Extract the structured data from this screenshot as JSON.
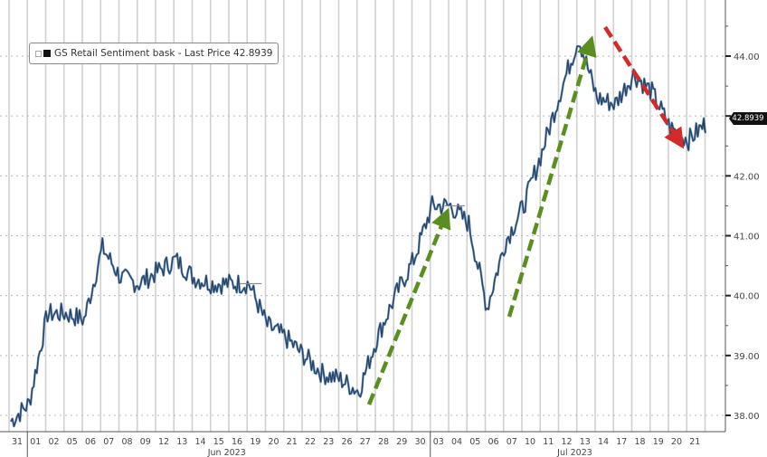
{
  "legend": {
    "label": "GS Retail Sentiment bask - Last Price 42.8939"
  },
  "price_tag": "42.8939",
  "colors": {
    "line": "#2b3e57",
    "line_highlight": "#5b8fc4",
    "up_arrow": "#5a8f1f",
    "down_arrow": "#d42a2a",
    "grid": "#d0d0d0",
    "axis": "#555555"
  },
  "chart_data": {
    "type": "line",
    "title": "GS Retail Sentiment bask - Last Price 42.8939",
    "xlabel": "",
    "ylabel": "",
    "series": [
      {
        "name": "GS Retail Sentiment bask - Last Price",
        "last_value": 42.8939,
        "x": [
          "May 31",
          "Jun 01",
          "Jun 02",
          "Jun 05",
          "Jun 06",
          "Jun 07",
          "Jun 08",
          "Jun 09",
          "Jun 12",
          "Jun 13",
          "Jun 14",
          "Jun 15",
          "Jun 16",
          "Jun 19",
          "Jun 20",
          "Jun 21",
          "Jun 22",
          "Jun 23",
          "Jun 26",
          "Jun 27",
          "Jun 28",
          "Jun 29",
          "Jun 30",
          "Jul 03",
          "Jul 04",
          "Jul 05",
          "Jul 06",
          "Jul 07",
          "Jul 10",
          "Jul 11",
          "Jul 12",
          "Jul 13",
          "Jul 14",
          "Jul 17",
          "Jul 18",
          "Jul 19",
          "Jul 20",
          "Jul 21"
        ],
        "values": [
          38.2,
          39.7,
          39.7,
          39.6,
          40.8,
          40.3,
          40.2,
          40.4,
          40.6,
          40.3,
          40.2,
          40.2,
          40.2,
          39.5,
          39.3,
          39.0,
          38.7,
          38.6,
          38.4,
          39.3,
          40.0,
          40.6,
          41.5,
          41.5,
          41.2,
          39.8,
          40.9,
          41.5,
          42.4,
          43.4,
          44.3,
          43.3,
          43.2,
          43.7,
          43.4,
          42.8,
          42.6,
          42.89
        ]
      }
    ],
    "x_tick_labels": [
      "31",
      "01",
      "02",
      "05",
      "06",
      "07",
      "08",
      "09",
      "12",
      "13",
      "14",
      "15",
      "16",
      "19",
      "20",
      "21",
      "22",
      "23",
      "26",
      "27",
      "28",
      "29",
      "30",
      "03",
      "04",
      "05",
      "06",
      "07",
      "10",
      "11",
      "12",
      "13",
      "14",
      "17",
      "18",
      "19",
      "20",
      "21"
    ],
    "x_month_labels": [
      "Jun 2023",
      "Jul 2023"
    ],
    "y_tick_labels": [
      "38.00",
      "39.00",
      "40.00",
      "41.00",
      "42.00",
      "43.00",
      "44.00"
    ],
    "ylim": [
      37.9,
      44.6
    ],
    "grid": true,
    "y_axis_position": "right",
    "legend_position": "top-left",
    "annotations": [
      {
        "type": "arrow",
        "style": "dashed",
        "color": "green",
        "from": "Jun 27 (~38.2)",
        "to": "Jul 03 (~41.4)"
      },
      {
        "type": "arrow",
        "style": "dashed",
        "color": "green",
        "from": "Jul 06 (~39.7)",
        "to": "Jul 13 (~44.3)"
      },
      {
        "type": "arrow",
        "style": "dashed",
        "color": "red",
        "from": "Jul 14 (~44.5)",
        "to": "Jul 20 (~42.5)"
      }
    ]
  }
}
